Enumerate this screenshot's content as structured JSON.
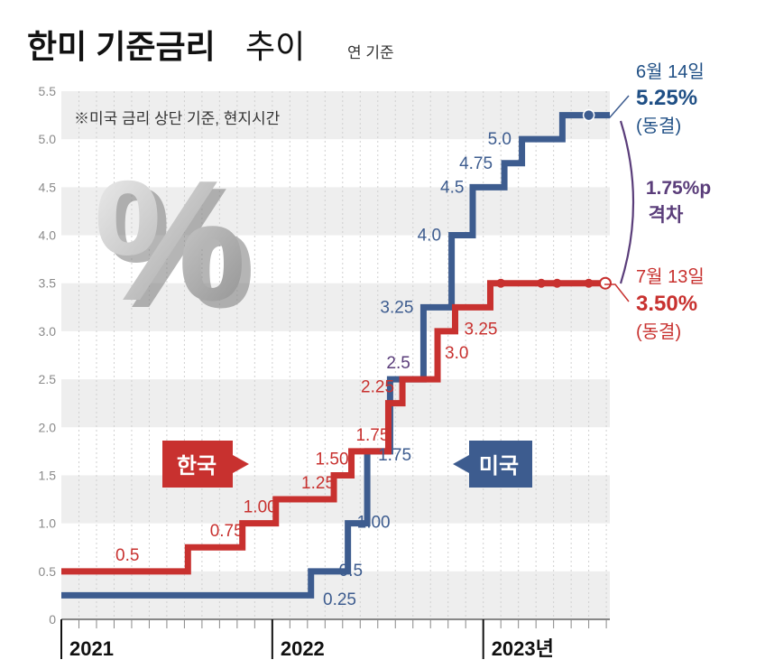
{
  "header": {
    "title_bold": "한미 기준금리",
    "title_light": "추이",
    "unit": "연 기준"
  },
  "note": "※미국 금리 상단 기준, 현지시간",
  "decor_glyph": "%",
  "colors": {
    "korea": "#c8312f",
    "us": "#3d5c8f",
    "gap": "#5a3d7a",
    "band": "#eeeeee",
    "grid": "#d0d0d0",
    "axis": "#444444"
  },
  "badges": {
    "korea": "한국",
    "us": "미국"
  },
  "callouts": {
    "us": {
      "date": "6월 14일",
      "rate": "5.25%",
      "status": "(동결)"
    },
    "korea": {
      "date": "7월 13일",
      "rate": "3.50%",
      "status": "(동결)"
    },
    "gap": {
      "value": "1.75%p",
      "label": "격차"
    }
  },
  "chart_data": {
    "type": "line",
    "step": true,
    "title": "한미 기준금리 추이",
    "unit_label": "연 기준",
    "ylim": [
      0,
      5.5
    ],
    "y_ticks": [
      "0",
      "0.5",
      "1.0",
      "1.5",
      "2.0",
      "2.5",
      "3.0",
      "3.5",
      "4.0",
      "4.5",
      "5.0",
      "5.5"
    ],
    "x_unit": "month index (0 = Jan 2021)",
    "xlim": [
      0,
      31.2
    ],
    "year_labels": [
      {
        "label": "2021",
        "x": 0
      },
      {
        "label": "2022",
        "x": 12
      },
      {
        "label": "2023년",
        "x": 24
      }
    ],
    "month_ticks": 31,
    "series": [
      {
        "name": "한국",
        "points": [
          [
            0,
            0.5
          ],
          [
            7.2,
            0.75
          ],
          [
            10.3,
            1.0
          ],
          [
            12.2,
            1.25
          ],
          [
            15.5,
            1.5
          ],
          [
            16.5,
            1.75
          ],
          [
            18.6,
            2.25
          ],
          [
            19.4,
            2.5
          ],
          [
            21.4,
            3.0
          ],
          [
            22.4,
            3.25
          ],
          [
            24.4,
            3.5
          ],
          [
            31.2,
            3.5
          ]
        ],
        "value_labels": [
          "0.5",
          "0.75",
          "1.00",
          "1.25",
          "1.50",
          "1.75",
          "2.25",
          "",
          "3.0",
          "3.25"
        ],
        "label_dots": [
          25,
          27.3,
          28.2,
          30
        ]
      },
      {
        "name": "미국",
        "points": [
          [
            0,
            0.25
          ],
          [
            14.2,
            0.5
          ],
          [
            16.3,
            1.0
          ],
          [
            17.4,
            1.75
          ],
          [
            18.7,
            2.5
          ],
          [
            20.6,
            3.25
          ],
          [
            22.2,
            4.0
          ],
          [
            23.4,
            4.5
          ],
          [
            25.2,
            4.75
          ],
          [
            26.2,
            5.0
          ],
          [
            28.5,
            5.25
          ],
          [
            31.2,
            5.25
          ]
        ],
        "value_labels": [
          "0.25",
          "0.5",
          "1.00",
          "1.75",
          "2.5",
          "3.25",
          "4.0",
          "4.5",
          "4.75",
          "5.0"
        ],
        "label_dots": [
          30
        ]
      }
    ]
  }
}
